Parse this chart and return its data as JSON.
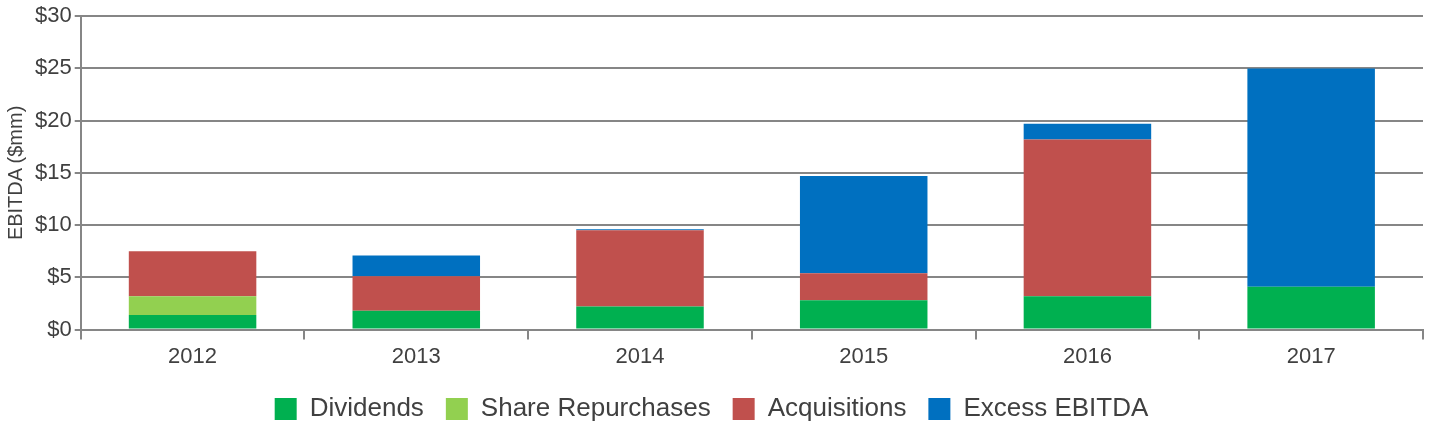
{
  "chart_data": {
    "type": "bar",
    "stacked": true,
    "ylabel": "EBITDA ($mm)",
    "categories": [
      "2012",
      "2013",
      "2014",
      "2015",
      "2016",
      "2017"
    ],
    "series": [
      {
        "name": "Dividends",
        "color": "#00b050",
        "values": [
          1.4,
          1.8,
          2.2,
          2.8,
          3.2,
          4.1
        ]
      },
      {
        "name": "Share Repurchases",
        "color": "#92d050",
        "values": [
          1.8,
          0,
          0,
          0,
          0,
          0
        ]
      },
      {
        "name": "Acquisitions",
        "color": "#c0504d",
        "values": [
          4.3,
          3.3,
          7.3,
          2.6,
          15.0,
          0
        ]
      },
      {
        "name": "Excess EBITDA",
        "color": "#0070c0",
        "values": [
          0,
          2.0,
          0.1,
          9.3,
          1.5,
          20.9
        ]
      }
    ],
    "ylim": [
      0,
      30
    ],
    "yticks": [
      {
        "value": 0,
        "label": "$0"
      },
      {
        "value": 5,
        "label": "$5"
      },
      {
        "value": 10,
        "label": "$10"
      },
      {
        "value": 15,
        "label": "$15"
      },
      {
        "value": 20,
        "label": "$20"
      },
      {
        "value": 25,
        "label": "$25"
      },
      {
        "value": 30,
        "label": "$30"
      }
    ],
    "grid": "y",
    "legend": "bottom"
  }
}
